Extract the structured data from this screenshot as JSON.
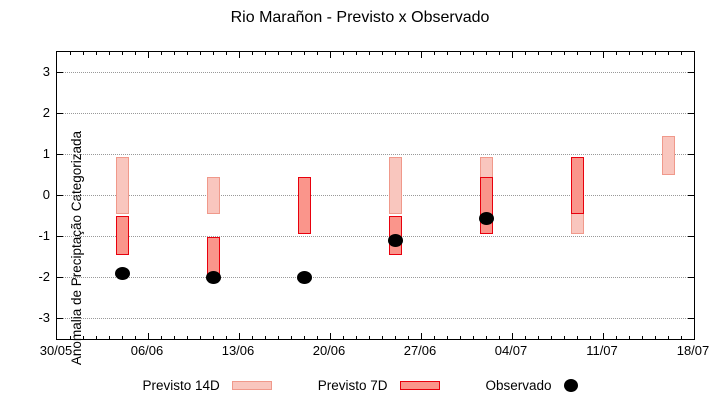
{
  "title": "Rio Marañon - Previsto x Observado",
  "chart_data": {
    "type": "bar",
    "subtype": "range-bars-with-scatter",
    "title": "Rio Marañon - Previsto x Observado",
    "xlabel": "",
    "ylabel": "Anomalia de Preciptação Categorizada",
    "ylim": [
      -3.5,
      3.5
    ],
    "yticks": [
      3,
      2,
      1,
      0,
      -1,
      -2,
      -3
    ],
    "grid": "horizontal dotted gridlines at integer y values",
    "legend_position": "bottom center",
    "x_axis": {
      "span_days": 49,
      "major_tick_labels": [
        "30/05",
        "06/06",
        "13/06",
        "20/06",
        "27/06",
        "04/07",
        "11/07",
        "18/07"
      ],
      "major_tick_days": [
        0,
        7,
        14,
        21,
        28,
        35,
        42,
        49
      ],
      "minor_tick_interval_days": 1
    },
    "colors": {
      "previsto_14d_fill": "#f9c6be",
      "previsto_14d_border": "#f0998b",
      "previsto_7d_fill": "#fa958b",
      "previsto_7d_border": "#e8000d",
      "observado": "#000000",
      "grid": "#999999",
      "axis": "#000000",
      "background": "#ffffff"
    },
    "series": [
      {
        "name": "Previsto 14D",
        "type": "range-bar",
        "fill": "#f9c6be",
        "border": "#f0998b",
        "bars": [
          {
            "date": "04/06",
            "day": 5,
            "low": -0.45,
            "high": 0.95
          },
          {
            "date": "11/06",
            "day": 12,
            "low": -0.45,
            "high": 0.45
          },
          {
            "date": "25/06",
            "day": 26,
            "low": -0.45,
            "high": 0.95
          },
          {
            "date": "02/07",
            "day": 33,
            "low": -0.95,
            "high": 0.95
          },
          {
            "date": "09/07",
            "day": 40,
            "low": -0.95,
            "high": 0.95
          },
          {
            "date": "16/07",
            "day": 47,
            "low": 0.5,
            "high": 1.45
          }
        ]
      },
      {
        "name": "Previsto 7D",
        "type": "range-bar",
        "fill": "#fa958b",
        "border": "#e8000d",
        "bars": [
          {
            "date": "04/06",
            "day": 5,
            "low": -1.45,
            "high": -0.5
          },
          {
            "date": "11/06",
            "day": 12,
            "low": -1.95,
            "high": -1.0
          },
          {
            "date": "18/06",
            "day": 19,
            "low": -0.95,
            "high": 0.45
          },
          {
            "date": "25/06",
            "day": 26,
            "low": -1.45,
            "high": -0.5
          },
          {
            "date": "02/07",
            "day": 33,
            "low": -0.95,
            "high": 0.45
          },
          {
            "date": "09/07",
            "day": 40,
            "low": -0.45,
            "high": 0.95
          }
        ]
      },
      {
        "name": "Observado",
        "type": "scatter",
        "color": "#000000",
        "points": [
          {
            "date": "04/06",
            "day": 5,
            "y": -1.9
          },
          {
            "date": "11/06",
            "day": 12,
            "y": -2.0
          },
          {
            "date": "18/06",
            "day": 19,
            "y": -2.0
          },
          {
            "date": "25/06",
            "day": 26,
            "y": -1.1
          },
          {
            "date": "02/07",
            "day": 33,
            "y": -0.55
          }
        ]
      }
    ]
  },
  "legend": {
    "items": [
      {
        "label": "Previsto 14D"
      },
      {
        "label": "Previsto 7D"
      },
      {
        "label": "Observado"
      }
    ]
  }
}
